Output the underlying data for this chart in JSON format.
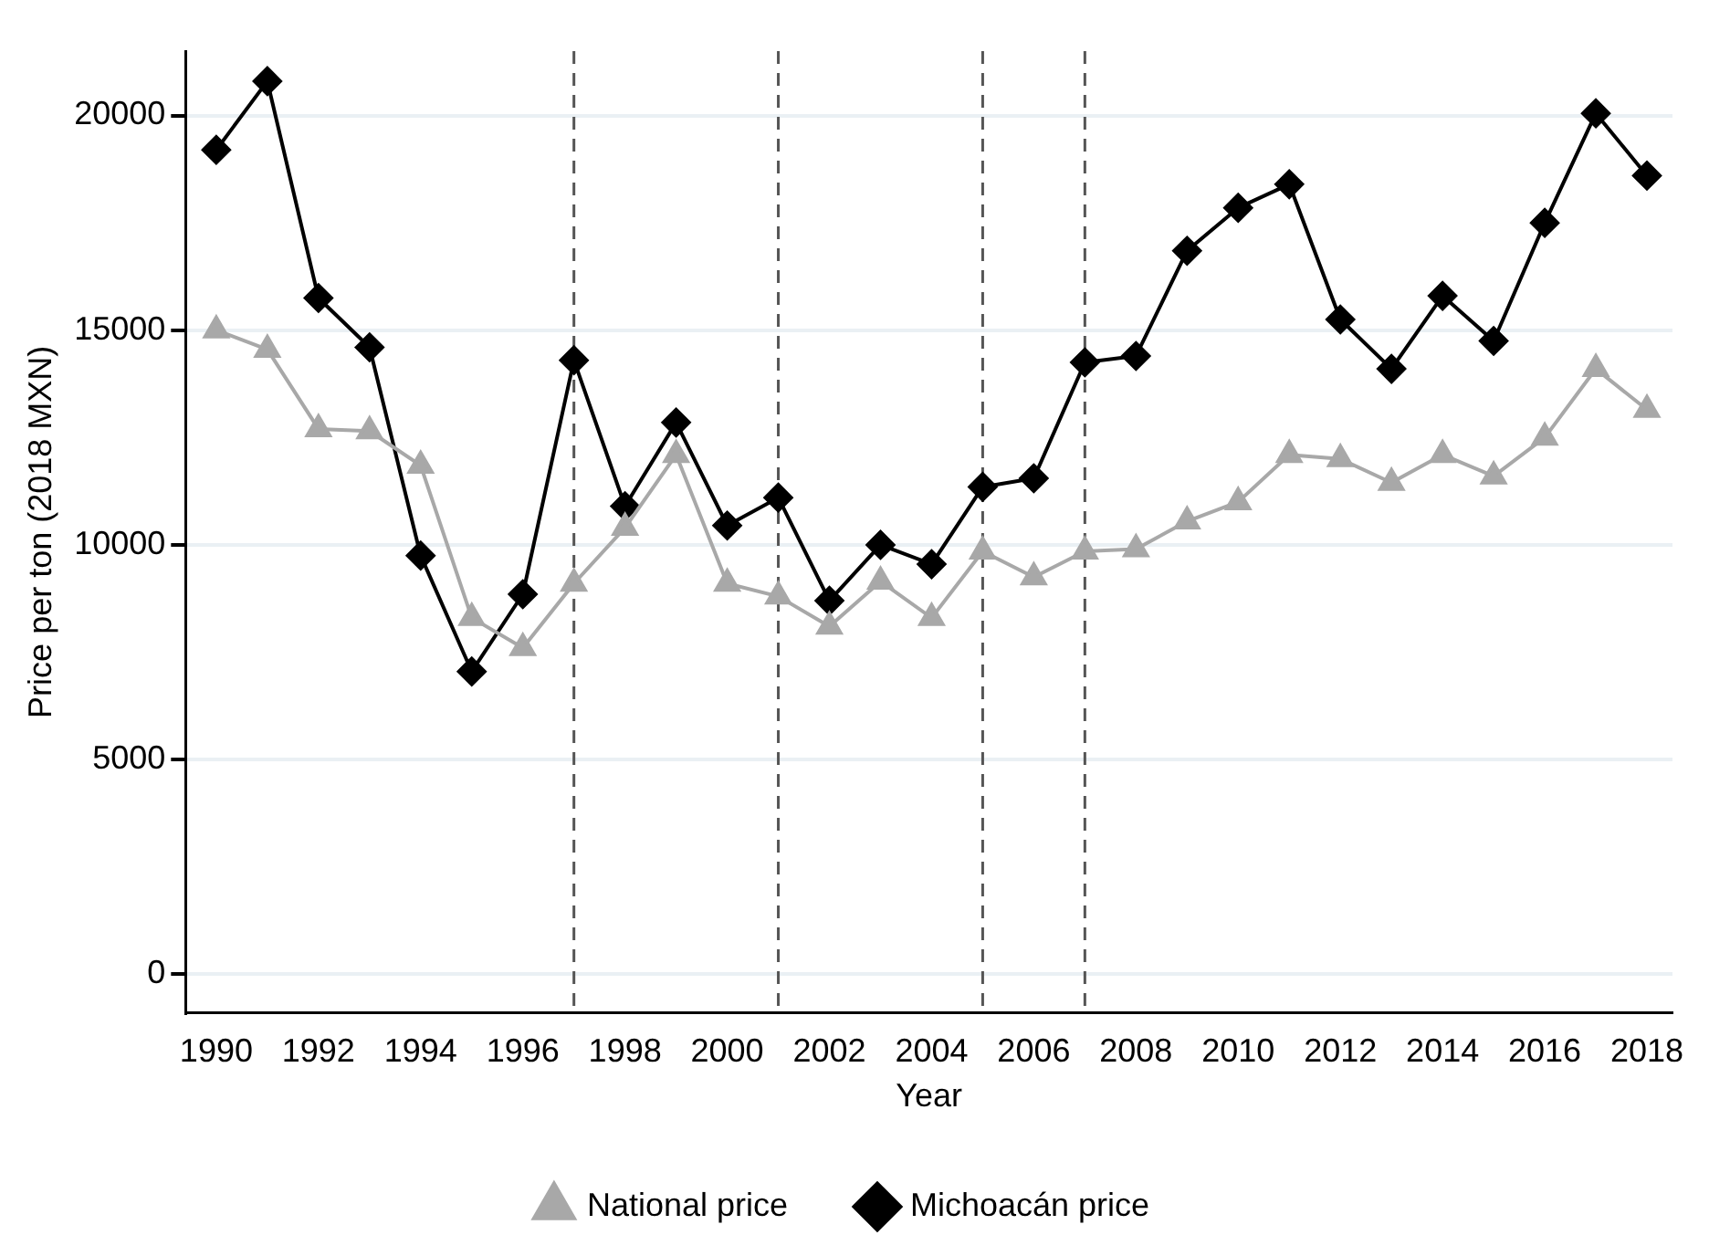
{
  "chart_data": {
    "type": "line",
    "xlabel": "Year",
    "ylabel": "Price per ton (2018 MXN)",
    "x": [
      1990,
      1991,
      1992,
      1993,
      1994,
      1995,
      1996,
      1997,
      1998,
      1999,
      2000,
      2001,
      2002,
      2003,
      2004,
      2005,
      2006,
      2007,
      2008,
      2009,
      2010,
      2011,
      2012,
      2013,
      2014,
      2015,
      2016,
      2017,
      2018
    ],
    "series": [
      {
        "name": "National price",
        "color": "#a8a8a8",
        "marker": "triangle",
        "values": [
          15000,
          14550,
          12700,
          12650,
          11850,
          8300,
          7600,
          9100,
          10400,
          12100,
          9100,
          8800,
          8100,
          9150,
          8300,
          9850,
          9250,
          9850,
          9900,
          10550,
          11000,
          12100,
          12000,
          11450,
          12100,
          11600,
          12500,
          14100,
          13150
        ]
      },
      {
        "name": "Michoacán price",
        "color": "#000000",
        "marker": "diamond",
        "values": [
          19200,
          20800,
          15750,
          14600,
          9750,
          7050,
          8850,
          14300,
          10900,
          12850,
          10450,
          11100,
          8700,
          10000,
          9550,
          11350,
          11550,
          14250,
          14400,
          16850,
          17850,
          18400,
          15250,
          14100,
          15800,
          14750,
          17500,
          20050,
          18600
        ]
      }
    ],
    "xlim": [
      1989.4,
      2018.5
    ],
    "xticks": [
      1990,
      1992,
      1994,
      1996,
      1998,
      2000,
      2002,
      2004,
      2006,
      2008,
      2010,
      2012,
      2014,
      2016,
      2018
    ],
    "ylim": [
      -900,
      21500
    ],
    "yticks": [
      0,
      5000,
      10000,
      15000,
      20000
    ],
    "ref_lines": [
      {
        "axis": "x",
        "value": 1997,
        "color": "#555555",
        "line_style": "dashed"
      },
      {
        "axis": "x",
        "value": 2001,
        "color": "#555555",
        "line_style": "dashed"
      },
      {
        "axis": "x",
        "value": 2005,
        "color": "#555555",
        "line_style": "dashed"
      },
      {
        "axis": "x",
        "value": 2007,
        "color": "#555555",
        "line_style": "dashed"
      }
    ],
    "grid": "y",
    "legend": "bottom",
    "line_style": "solid"
  }
}
